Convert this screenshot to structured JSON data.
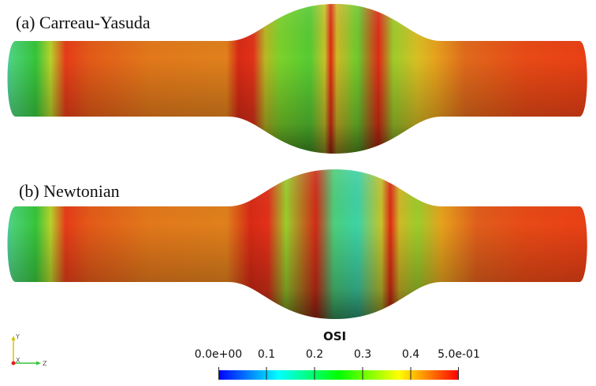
{
  "panels": [
    {
      "label": "(a) Carreau-Yasuda"
    },
    {
      "label": "(b) Newtonian"
    }
  ],
  "colorbar": {
    "title": "OSI",
    "ticks": [
      "0.0e+00",
      "0.1",
      "0.2",
      "0.3",
      "0.4",
      "5.0e-01"
    ],
    "range": [
      0.0,
      0.5
    ],
    "colormap": [
      "#0000ff",
      "#00ffff",
      "#00ff00",
      "#ffff00",
      "#ff0000"
    ]
  },
  "orientation_axes": {
    "x": "X",
    "y": "Y",
    "z": "Z"
  }
}
